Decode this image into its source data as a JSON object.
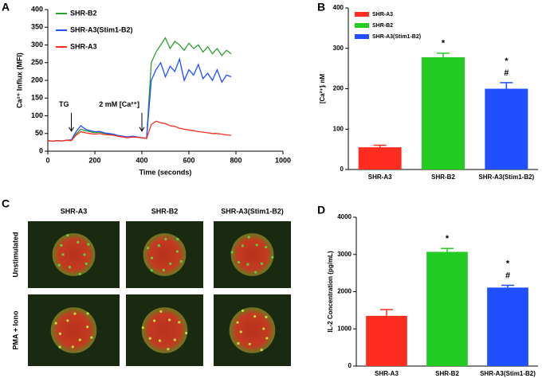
{
  "chart_data": [
    {
      "type": "line",
      "panel_label": "A",
      "xlabel": "Time (seconds)",
      "ylabel": "Ca²⁺ Influx (MFI)",
      "x": [
        0,
        20,
        40,
        60,
        80,
        100,
        120,
        140,
        160,
        180,
        200,
        220,
        240,
        260,
        280,
        300,
        320,
        340,
        360,
        380,
        400,
        420,
        440,
        460,
        480,
        500,
        520,
        540,
        560,
        580,
        600,
        620,
        640,
        660,
        680,
        700,
        720,
        740,
        760,
        780
      ],
      "series": [
        {
          "name": "SHR-B2",
          "color": "#2ca02c",
          "values": [
            30,
            28,
            30,
            29,
            31,
            30,
            48,
            62,
            58,
            55,
            52,
            54,
            50,
            48,
            47,
            44,
            42,
            40,
            42,
            40,
            38,
            37,
            250,
            280,
            300,
            320,
            290,
            310,
            300,
            285,
            305,
            290,
            300,
            280,
            295,
            275,
            290,
            270,
            285,
            275
          ]
        },
        {
          "name": "SHR-A3(Stim1-B2)",
          "color": "#1f4fff",
          "values": [
            30,
            28,
            30,
            29,
            31,
            32,
            55,
            72,
            62,
            58,
            55,
            56,
            52,
            50,
            48,
            44,
            42,
            40,
            42,
            40,
            38,
            36,
            200,
            230,
            250,
            210,
            240,
            225,
            260,
            200,
            230,
            215,
            245,
            205,
            220,
            200,
            230,
            195,
            215,
            210
          ]
        },
        {
          "name": "SHR-A3",
          "color": "#ff2d1f",
          "values": [
            30,
            28,
            30,
            29,
            31,
            30,
            45,
            55,
            52,
            50,
            48,
            50,
            47,
            46,
            45,
            42,
            40,
            38,
            40,
            39,
            38,
            36,
            75,
            85,
            80,
            78,
            72,
            70,
            65,
            62,
            60,
            58,
            55,
            54,
            52,
            50,
            50,
            48,
            46,
            45
          ]
        }
      ],
      "annotations": [
        {
          "text": "TG",
          "x": 100,
          "y": 50
        },
        {
          "text": "2 mM [Ca²⁺]",
          "x": 400,
          "y": 50
        }
      ],
      "xlim": [
        0,
        1000
      ],
      "xticks": [
        0,
        200,
        400,
        600,
        800,
        1000
      ],
      "ylim": [
        0,
        400
      ],
      "yticks": [
        0,
        50,
        100,
        150,
        200,
        250,
        300,
        350,
        400
      ]
    },
    {
      "type": "bar",
      "panel_label": "B",
      "ylabel": "[Ca²⁺]ᵢ nM",
      "legend": true,
      "categories": [
        "SHR-A3",
        "SHR-B2",
        "SHR-A3(Stim1-B2)"
      ],
      "values": [
        55,
        278,
        200
      ],
      "errors": [
        5,
        10,
        15
      ],
      "colors": [
        "#ff2d1f",
        "#22cc22",
        "#1f4fff"
      ],
      "significance": [
        null,
        [
          "*"
        ],
        [
          "*",
          "#"
        ]
      ],
      "ylim": [
        0,
        400
      ],
      "yticks": [
        0,
        100,
        200,
        300,
        400
      ]
    },
    {
      "type": "bar",
      "panel_label": "D",
      "ylabel": "IL-2 Concentration (pg/mL)",
      "legend": false,
      "categories": [
        "SHR-A3",
        "SHR-B2",
        "SHR-A3(Stim1-B2)"
      ],
      "values": [
        1350,
        3070,
        2110
      ],
      "errors": [
        170,
        90,
        60
      ],
      "colors": [
        "#ff2d1f",
        "#22cc22",
        "#1f4fff"
      ],
      "significance": [
        null,
        [
          "*"
        ],
        [
          "*",
          "#"
        ]
      ],
      "ylim": [
        0,
        4000
      ],
      "yticks": [
        0,
        1000,
        2000,
        3000,
        4000
      ]
    }
  ],
  "image_grid": {
    "panel_label": "C",
    "columns": [
      "SHR-A3",
      "SHR-B2",
      "SHR-A3(Stim1-B2)"
    ],
    "rows": [
      "Unstimulated",
      "PMA + Iono"
    ]
  }
}
